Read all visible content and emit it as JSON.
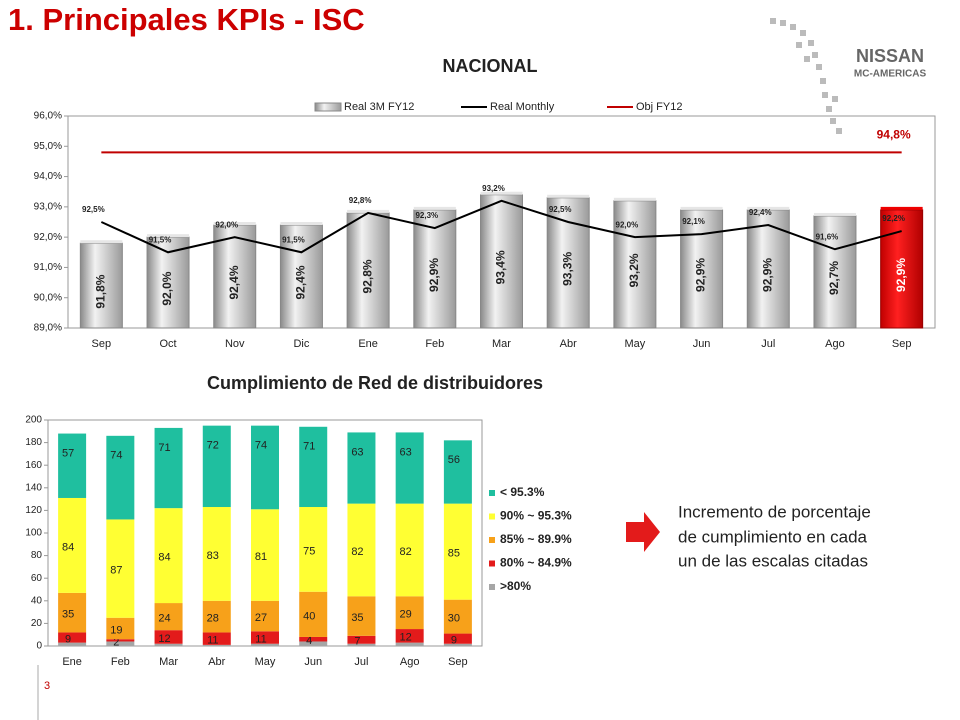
{
  "title": "1. Principales KPIs - ISC",
  "logo": {
    "brand": "NISSAN",
    "region": "MC-AMERICAS"
  },
  "note": [
    "Incremento de porcentaje",
    "de cumplimiento en cada",
    "un de las escalas citadas"
  ],
  "page": "3",
  "chart_data": [
    {
      "type": "bar",
      "title": "NACIONAL",
      "legend": "top",
      "grid": false,
      "categories": [
        "Sep",
        "Oct",
        "Nov",
        "Dic",
        "Ene",
        "Feb",
        "Mar",
        "Abr",
        "May",
        "Jun",
        "Jul",
        "Ago",
        "Sep"
      ],
      "ylim": [
        89,
        96
      ],
      "yticks": [
        {
          "value": 89,
          "label": "89,0%"
        },
        {
          "value": 90,
          "label": "90,0%"
        },
        {
          "value": 91,
          "label": "91,0%"
        },
        {
          "value": 92,
          "label": "92,0%"
        },
        {
          "value": 93,
          "label": "93,0%"
        },
        {
          "value": 94,
          "label": "94,0%"
        },
        {
          "value": 95,
          "label": "95,0%"
        },
        {
          "value": 96,
          "label": "96,0%"
        }
      ],
      "series": [
        {
          "name": "Real 3M FY12",
          "type": "bar",
          "color": "#c8c8c8",
          "colors": [
            "#c8c8c8",
            "#c8c8c8",
            "#c8c8c8",
            "#c8c8c8",
            "#c8c8c8",
            "#c8c8c8",
            "#c8c8c8",
            "#c8c8c8",
            "#c8c8c8",
            "#c8c8c8",
            "#c8c8c8",
            "#c8c8c8",
            "#ff0000"
          ],
          "values": [
            91.8,
            92.0,
            92.4,
            92.4,
            92.8,
            92.9,
            93.4,
            93.3,
            93.2,
            92.9,
            92.9,
            92.7,
            92.9
          ],
          "value_labels": [
            "91,8%",
            "92,0%",
            "92,4%",
            "92,4%",
            "92,8%",
            "92,9%",
            "93,4%",
            "93,3%",
            "93,2%",
            "92,9%",
            "92,9%",
            "92,7%",
            "92,9%"
          ]
        },
        {
          "name": "Real Monthly",
          "type": "line",
          "color": "#000000",
          "values": [
            92.5,
            91.5,
            92.0,
            91.5,
            92.8,
            92.3,
            93.2,
            92.5,
            92.0,
            92.1,
            92.4,
            91.6,
            92.2
          ],
          "value_labels": [
            "92,5%",
            "91,5%",
            "92,0%",
            "91,5%",
            "92,8%",
            "92,3%",
            "93,2%",
            "92,5%",
            "92,0%",
            "92,1%",
            "92,4%",
            "91,6%",
            "92,2%"
          ]
        },
        {
          "name": "Obj FY12",
          "type": "line",
          "color": "#c00000",
          "values": [
            94.8,
            94.8,
            94.8,
            94.8,
            94.8,
            94.8,
            94.8,
            94.8,
            94.8,
            94.8,
            94.8,
            94.8,
            94.8
          ],
          "value_labels": [
            null,
            null,
            null,
            null,
            null,
            null,
            null,
            null,
            null,
            null,
            null,
            null,
            "94,8%"
          ]
        }
      ]
    },
    {
      "type": "stacked_bar",
      "title": "Cumplimiento de Red de distribuidores",
      "legend": "right",
      "grid": false,
      "categories": [
        "Ene",
        "Feb",
        "Mar",
        "Abr",
        "May",
        "Jun",
        "Jul",
        "Ago",
        "Sep"
      ],
      "ylim": [
        0,
        200
      ],
      "yticks": [
        0,
        20,
        40,
        60,
        80,
        100,
        120,
        140,
        160,
        180,
        200
      ],
      "series": [
        {
          "name": ">80%",
          "color": "#a6a6a6",
          "show_labels": false,
          "values": [
            3,
            4,
            2,
            1,
            2,
            4,
            2,
            3,
            2
          ]
        },
        {
          "name": "80% ~ 84.9%",
          "color": "#e31b1b",
          "show_labels": true,
          "values": [
            9,
            2,
            12,
            11,
            11,
            4,
            7,
            12,
            9
          ]
        },
        {
          "name": "85% ~ 89.9%",
          "color": "#f7a11a",
          "show_labels": true,
          "values": [
            35,
            19,
            24,
            28,
            27,
            40,
            35,
            29,
            30
          ]
        },
        {
          "name": "90% ~ 95.3%",
          "color": "#ffff33",
          "show_labels": true,
          "values": [
            84,
            87,
            84,
            83,
            81,
            75,
            82,
            82,
            85
          ]
        },
        {
          "name": "< 95.3%",
          "color": "#1fbf9f",
          "show_labels": true,
          "values": [
            57,
            74,
            71,
            72,
            74,
            71,
            63,
            63,
            56
          ]
        }
      ]
    }
  ]
}
